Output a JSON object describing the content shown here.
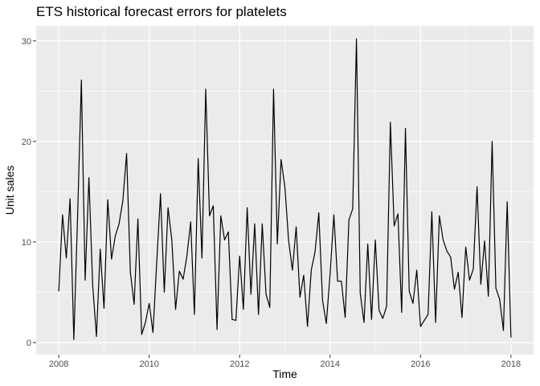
{
  "chart_data": {
    "type": "line",
    "title": "ETS historical forecast errors for platelets",
    "xlabel": "Time",
    "ylabel": "Unit sales",
    "xlim": [
      2007.5,
      2018.5
    ],
    "ylim": [
      -1.2,
      31.5
    ],
    "x_ticks": [
      2008,
      2010,
      2012,
      2014,
      2016,
      2018
    ],
    "x_tick_labels": [
      "2008",
      "2010",
      "2012",
      "2014",
      "2016",
      "2018"
    ],
    "y_ticks": [
      0,
      10,
      20,
      30
    ],
    "y_tick_labels": [
      "0",
      "10",
      "20",
      "30"
    ],
    "grid": true,
    "legend": "none",
    "colors": {
      "panel": "#ebebeb",
      "grid": "#ffffff",
      "line": "#000000",
      "ticks": "#333333"
    },
    "series": [
      {
        "start": 2008.0,
        "step": 0.08333333,
        "values": [
          5.1,
          12.7,
          8.4,
          14.3,
          0.3,
          12.6,
          26.1,
          6.2,
          16.4,
          5.7,
          0.6,
          9.3,
          3.4,
          14.2,
          8.3,
          10.6,
          11.8,
          14.1,
          18.8,
          7.0,
          3.8,
          12.3,
          0.8,
          2.0,
          3.9,
          1.0,
          8.0,
          14.8,
          5.0,
          13.4,
          10.2,
          3.3,
          7.1,
          6.3,
          8.6,
          12.0,
          2.8,
          18.3,
          8.4,
          25.2,
          12.6,
          13.6,
          1.3,
          12.6,
          10.2,
          11.0,
          2.3,
          2.2,
          8.6,
          3.3,
          13.4,
          4.8,
          11.8,
          2.8,
          11.8,
          4.8,
          3.5,
          25.2,
          9.8,
          18.2,
          15.5,
          10.1,
          7.2,
          11.5,
          4.5,
          6.7,
          1.6,
          7.2,
          9.0,
          12.9,
          4.2,
          1.9,
          6.8,
          12.7,
          6.1,
          6.1,
          2.5,
          12.2,
          13.3,
          30.2,
          4.9,
          2.0,
          9.8,
          2.3,
          10.2,
          3.2,
          2.4,
          3.6,
          21.9,
          11.6,
          12.8,
          3.0,
          21.3,
          5.1,
          3.9,
          7.2,
          1.6,
          2.2,
          2.8,
          13.0,
          2.0,
          12.6,
          10.2,
          9.1,
          8.5,
          5.3,
          7.0,
          2.5,
          9.5,
          6.2,
          7.3,
          15.5,
          5.8,
          10.1,
          4.6,
          20.0,
          5.4,
          4.3,
          1.2,
          14.0,
          0.5
        ]
      }
    ]
  }
}
